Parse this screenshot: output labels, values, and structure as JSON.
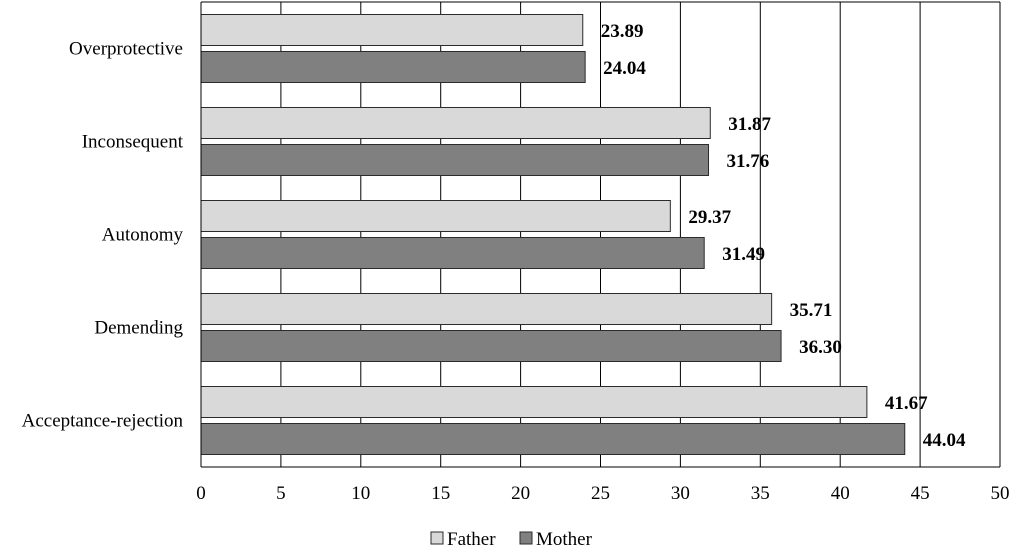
{
  "chart_data": {
    "type": "bar",
    "orientation": "horizontal",
    "categories": [
      "Overprotective",
      "Inconsequent",
      "Autonomy",
      "Demending",
      "Acceptance-rejection"
    ],
    "series": [
      {
        "name": "Father",
        "values": [
          23.89,
          31.87,
          29.37,
          35.71,
          41.67
        ],
        "color": "#d9d9d9",
        "labels": [
          "23.89",
          "31.87",
          "29.37",
          "35.71",
          "41.67"
        ]
      },
      {
        "name": "Mother",
        "values": [
          24.04,
          31.76,
          31.49,
          36.3,
          44.04
        ],
        "color": "#808080",
        "labels": [
          "24.04",
          "31.76",
          "31.49",
          "36.30",
          "44.04"
        ]
      }
    ],
    "xlim": [
      0,
      50
    ],
    "xticks": [
      0,
      5,
      10,
      15,
      20,
      25,
      30,
      35,
      40,
      45,
      50
    ],
    "xtick_labels": [
      "0",
      "5",
      "10",
      "15",
      "20",
      "25",
      "30",
      "35",
      "40",
      "45",
      "50"
    ],
    "title": "",
    "xlabel": "",
    "ylabel": "",
    "grid": true,
    "legend_position": "bottom"
  }
}
